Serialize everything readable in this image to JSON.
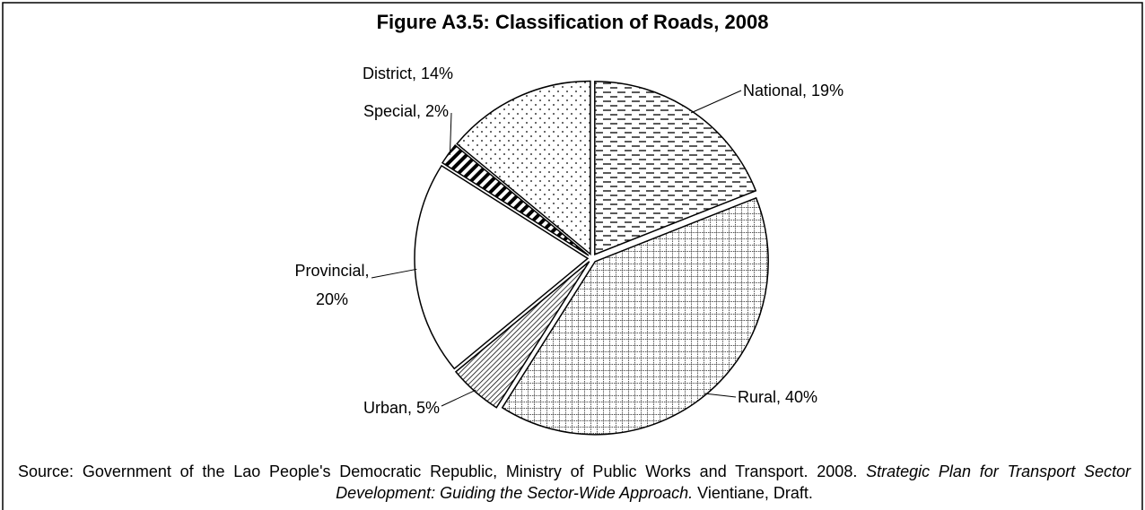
{
  "chart_data": {
    "type": "pie",
    "title": "Figure A3.5: Classification of Roads, 2008",
    "values": [
      19,
      40,
      5,
      20,
      2,
      14
    ],
    "value_labels": [
      "National, 19%",
      "Rural, 40%",
      "Urban, 5%",
      "Provincial, 20%",
      "Special, 2%",
      "District, 14%"
    ],
    "source": {
      "prefix": "Source:",
      "text": "Government of the Lao People's Democratic Republic, Ministry of Public Works and Transport. 2008.",
      "italic": "Strategic Plan for Transport Sector Development: Guiding the Sector-Wide Approach.",
      "tail": "Vientiane, Draft."
    }
  }
}
